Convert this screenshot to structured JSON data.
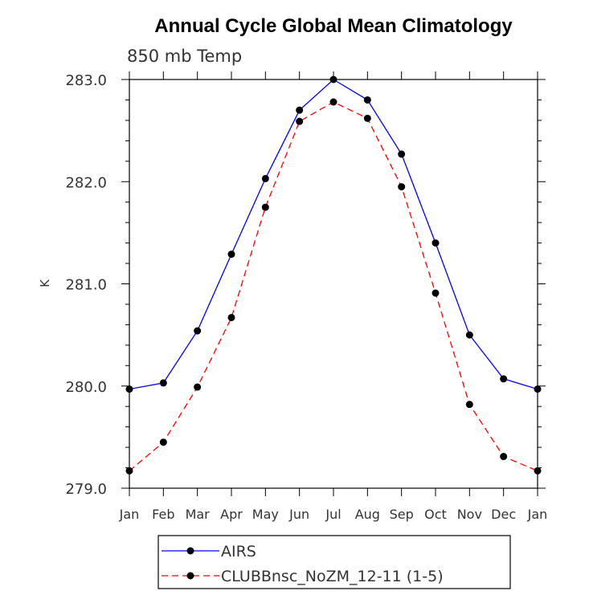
{
  "chart_data": {
    "type": "line",
    "title": "Annual Cycle Global Mean Climatology",
    "subtitle": "850 mb Temp",
    "xlabel": "",
    "ylabel": "K",
    "categories": [
      "Jan",
      "Feb",
      "Mar",
      "Apr",
      "May",
      "Jun",
      "Jul",
      "Aug",
      "Sep",
      "Oct",
      "Nov",
      "Dec",
      "Jan"
    ],
    "ylim": [
      279.0,
      283.0
    ],
    "yticks": [
      "279.0",
      "280.0",
      "281.0",
      "282.0",
      "283.0"
    ],
    "ytick_values": [
      279.0,
      280.0,
      281.0,
      282.0,
      283.0
    ],
    "yminor_step": 0.2,
    "grid": false,
    "legend_position": "bottom",
    "series": [
      {
        "name": "AIRS",
        "color": "#0000ff",
        "dash": "solid",
        "marker": "filled-circle",
        "values": [
          279.97,
          280.03,
          280.54,
          281.29,
          282.03,
          282.7,
          283.0,
          282.8,
          282.27,
          281.4,
          280.5,
          280.07,
          279.97
        ]
      },
      {
        "name": "CLUBBnsc_NoZM_12-11 (1-5)",
        "color": "#ff0000",
        "dash": "dashed",
        "marker": "filled-circle",
        "values": [
          279.17,
          279.45,
          279.99,
          280.67,
          281.75,
          282.59,
          282.78,
          282.62,
          281.95,
          280.91,
          279.82,
          279.31,
          279.17
        ]
      }
    ]
  }
}
